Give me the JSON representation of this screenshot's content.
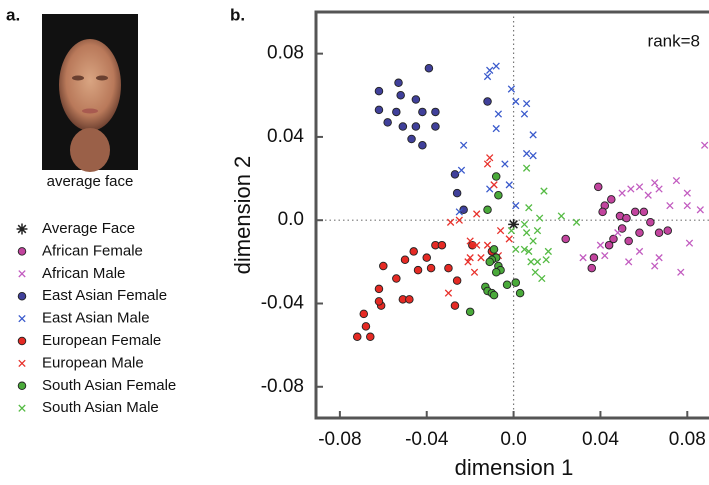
{
  "panel_a": {
    "label": "a.",
    "caption": "average face"
  },
  "chart_data": {
    "type": "scatter",
    "panel_label": "b.",
    "annotation": "rank=8",
    "xlabel": "dimension 1",
    "ylabel": "dimension 2",
    "xlim": [
      -0.091,
      0.09
    ],
    "ylim": [
      -0.095,
      0.1
    ],
    "xticks": [
      -0.08,
      -0.04,
      {
        "value": 0,
        "label": "0.0"
      },
      0.04,
      0.08
    ],
    "yticks": [
      -0.08,
      -0.04,
      {
        "value": 0,
        "label": "0.0"
      },
      0.04,
      0.08
    ],
    "zero_lines": true,
    "series": [
      {
        "name": "Average Face",
        "color": "#222222",
        "marker": "*",
        "x": [
          0.0
        ],
        "y": [
          -0.002
        ]
      },
      {
        "name": "African Female",
        "color": "#c2449e",
        "marker": "o",
        "x": [
          0.039,
          0.042,
          0.045,
          0.041,
          0.049,
          0.052,
          0.056,
          0.06,
          0.063,
          0.05,
          0.046,
          0.053,
          0.058,
          0.067,
          0.071,
          0.037,
          0.036,
          0.024,
          0.044
        ],
        "y": [
          0.016,
          0.007,
          0.01,
          0.004,
          0.002,
          0.001,
          0.004,
          0.004,
          -0.001,
          -0.004,
          -0.009,
          -0.01,
          -0.006,
          -0.006,
          -0.005,
          -0.018,
          -0.023,
          -0.009,
          -0.012
        ]
      },
      {
        "name": "African Male",
        "color": "#c25cc0",
        "marker": "x",
        "x": [
          0.088,
          0.075,
          0.08,
          0.058,
          0.062,
          0.054,
          0.065,
          0.067,
          0.05,
          0.072,
          0.08,
          0.086,
          0.04,
          0.042,
          0.053,
          0.067,
          0.077,
          0.058,
          0.081,
          0.048,
          0.032,
          0.065
        ],
        "y": [
          0.036,
          0.019,
          0.013,
          0.016,
          0.012,
          0.015,
          0.018,
          0.015,
          0.013,
          0.007,
          0.007,
          0.005,
          -0.012,
          -0.017,
          -0.02,
          -0.018,
          -0.025,
          -0.015,
          -0.011,
          -0.006,
          -0.018,
          -0.022
        ]
      },
      {
        "name": "East Asian Female",
        "color": "#40409a",
        "marker": "o",
        "x": [
          -0.039,
          -0.053,
          -0.062,
          -0.052,
          -0.045,
          -0.062,
          -0.054,
          -0.042,
          -0.036,
          -0.058,
          -0.045,
          -0.036,
          -0.051,
          -0.047,
          -0.042,
          -0.012,
          -0.026,
          -0.027,
          -0.023
        ],
        "y": [
          0.073,
          0.066,
          0.062,
          0.06,
          0.058,
          0.053,
          0.052,
          0.052,
          0.052,
          0.047,
          0.045,
          0.045,
          0.045,
          0.039,
          0.036,
          0.057,
          0.013,
          0.022,
          0.005
        ]
      },
      {
        "name": "East Asian Male",
        "color": "#3a5acc",
        "marker": "x",
        "x": [
          -0.008,
          -0.011,
          -0.012,
          -0.001,
          0.001,
          0.006,
          -0.007,
          0.005,
          0.009,
          -0.008,
          -0.023,
          0.006,
          0.009,
          -0.002,
          -0.011,
          -0.004,
          0.001,
          -0.025,
          -0.024
        ],
        "y": [
          0.074,
          0.072,
          0.069,
          0.063,
          0.057,
          0.056,
          0.051,
          0.051,
          0.041,
          0.044,
          0.036,
          0.032,
          0.031,
          0.017,
          0.015,
          0.027,
          0.007,
          0.004,
          0.024
        ]
      },
      {
        "name": "European Female",
        "color": "#e52a24",
        "marker": "o",
        "x": [
          -0.072,
          -0.068,
          -0.066,
          -0.069,
          -0.061,
          -0.062,
          -0.062,
          -0.06,
          -0.054,
          -0.05,
          -0.046,
          -0.044,
          -0.038,
          -0.036,
          -0.033,
          -0.04,
          -0.03,
          -0.026,
          -0.019,
          -0.027,
          -0.051,
          -0.048,
          -0.01
        ],
        "y": [
          -0.056,
          -0.051,
          -0.056,
          -0.045,
          -0.041,
          -0.039,
          -0.033,
          -0.022,
          -0.028,
          -0.019,
          -0.015,
          -0.024,
          -0.023,
          -0.012,
          -0.012,
          -0.018,
          -0.023,
          -0.029,
          -0.012,
          -0.041,
          -0.038,
          -0.038,
          -0.015
        ]
      },
      {
        "name": "European Male",
        "color": "#e8322c",
        "marker": "x",
        "x": [
          -0.011,
          -0.012,
          -0.009,
          -0.017,
          -0.029,
          -0.025,
          -0.02,
          -0.017,
          -0.006,
          -0.021,
          -0.018,
          -0.03,
          -0.007,
          -0.02,
          -0.015,
          -0.012,
          -0.002
        ],
        "y": [
          0.03,
          0.027,
          0.017,
          0.003,
          -0.001,
          0.0,
          -0.01,
          -0.012,
          -0.005,
          -0.02,
          -0.025,
          -0.035,
          -0.017,
          -0.018,
          -0.018,
          -0.012,
          -0.009
        ]
      },
      {
        "name": "South Asian Female",
        "color": "#4aaa3a",
        "marker": "o",
        "x": [
          -0.008,
          -0.007,
          -0.012,
          -0.009,
          -0.008,
          -0.01,
          -0.007,
          -0.011,
          -0.006,
          -0.008,
          -0.013,
          -0.012,
          -0.01,
          -0.009,
          -0.02,
          -0.003,
          0.001,
          0.003
        ],
        "y": [
          0.021,
          0.012,
          0.005,
          -0.014,
          -0.018,
          -0.019,
          -0.022,
          -0.02,
          -0.024,
          -0.025,
          -0.032,
          -0.034,
          -0.035,
          -0.036,
          -0.044,
          -0.031,
          -0.03,
          -0.035
        ]
      },
      {
        "name": "South Asian Male",
        "color": "#55bb44",
        "marker": "x",
        "x": [
          0.006,
          0.014,
          0.022,
          0.029,
          0.007,
          0.011,
          0.012,
          0.006,
          0.009,
          0.008,
          0.01,
          0.013,
          0.015,
          0.007,
          0.005,
          0.001,
          -0.001,
          0.016,
          0.005,
          0.011
        ],
        "y": [
          0.025,
          0.014,
          0.002,
          -0.001,
          0.006,
          -0.005,
          0.001,
          -0.006,
          -0.01,
          -0.02,
          -0.025,
          -0.028,
          -0.019,
          -0.015,
          -0.014,
          -0.014,
          -0.005,
          -0.015,
          -0.002,
          -0.02
        ]
      }
    ]
  }
}
